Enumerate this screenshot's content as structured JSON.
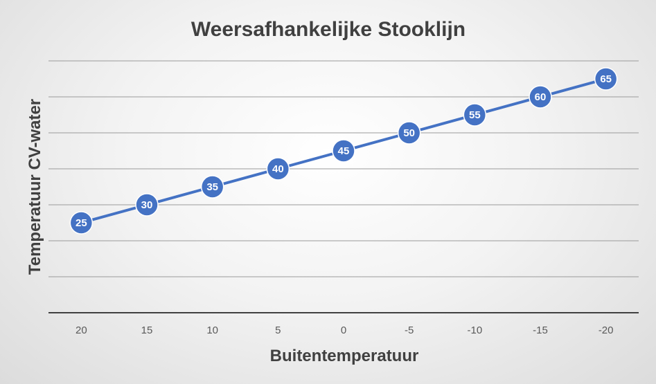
{
  "colors": {
    "series": "#4472c4",
    "gridline": "#9a9a9a",
    "axis_line": "#404040",
    "text_dark": "#404040",
    "tick_text": "#595959",
    "label_text": "#ffffff"
  },
  "chart_data": {
    "type": "line",
    "title": "Weersafhankelijke Stooklijn",
    "xlabel": "Buitentemperatuur",
    "ylabel": "Temperatuur CV-water",
    "categories": [
      "20",
      "15",
      "10",
      "5",
      "0",
      "-5",
      "-10",
      "-15",
      "-20"
    ],
    "series": [
      {
        "values": [
          25,
          30,
          35,
          40,
          45,
          50,
          55,
          60,
          65
        ]
      }
    ],
    "ylim": [
      0,
      70
    ],
    "y_gridline_step": 10,
    "grid": true,
    "y_tick_labels_visible": false,
    "data_labels": true,
    "legend": "none"
  }
}
